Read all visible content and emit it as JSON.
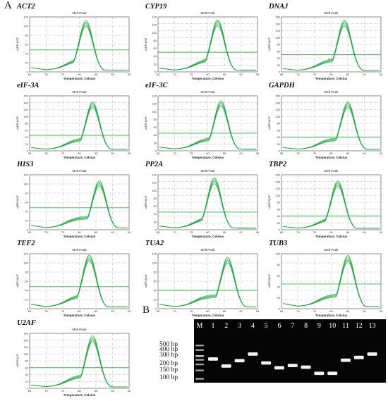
{
  "panel_a_label": "A",
  "panel_b_label": "B",
  "melt_plot": {
    "title": "Melt Peak",
    "xlabel": "Temperature, Celsius",
    "ylabel": "-d(RFU)/dT"
  },
  "genes": [
    "ACT2",
    "CYP19",
    "DNAJ",
    "eIF-3A",
    "eIF-3C",
    "GAPDH",
    "HIS3",
    "PP2A",
    "TBP2",
    "TEF2",
    "TUA2",
    "TUB3",
    "U2AF"
  ],
  "chart_data": [
    {
      "type": "line",
      "gene": "ACT2",
      "xlim": [
        65,
        95
      ],
      "ylim": [
        0,
        120
      ],
      "peak_temp": 82,
      "peak_value": 110,
      "threshold": 48
    },
    {
      "type": "line",
      "gene": "CYP19",
      "xlim": [
        65,
        95
      ],
      "ylim": [
        0,
        140
      ],
      "peak_temp": 83,
      "peak_value": 130,
      "threshold": 50
    },
    {
      "type": "line",
      "gene": "DNAJ",
      "xlim": [
        65,
        95
      ],
      "ylim": [
        0,
        160
      ],
      "peak_temp": 84,
      "peak_value": 148,
      "threshold": 50
    },
    {
      "type": "line",
      "gene": "eIF-3A",
      "xlim": [
        65,
        95
      ],
      "ylim": [
        0,
        160
      ],
      "peak_temp": 84,
      "peak_value": 140,
      "threshold": 45
    },
    {
      "type": "line",
      "gene": "eIF-3C",
      "xlim": [
        65,
        95
      ],
      "ylim": [
        0,
        140
      ],
      "peak_temp": 84,
      "peak_value": 125,
      "threshold": 45
    },
    {
      "type": "line",
      "gene": "GAPDH",
      "xlim": [
        65,
        95
      ],
      "ylim": [
        0,
        160
      ],
      "peak_temp": 85,
      "peak_value": 140,
      "threshold": 40
    },
    {
      "type": "line",
      "gene": "HIS3",
      "xlim": [
        65,
        95
      ],
      "ylim": [
        0,
        120
      ],
      "peak_temp": 86,
      "peak_value": 105,
      "threshold": 48
    },
    {
      "type": "line",
      "gene": "PP2A",
      "xlim": [
        65,
        95
      ],
      "ylim": [
        0,
        140
      ],
      "peak_temp": 82,
      "peak_value": 130,
      "threshold": 45
    },
    {
      "type": "line",
      "gene": "TBP2",
      "xlim": [
        65,
        95
      ],
      "ylim": [
        0,
        160
      ],
      "peak_temp": 82,
      "peak_value": 140,
      "threshold": 40
    },
    {
      "type": "line",
      "gene": "TEF2",
      "xlim": [
        65,
        95
      ],
      "ylim": [
        0,
        120
      ],
      "peak_temp": 83,
      "peak_value": 115,
      "threshold": 48
    },
    {
      "type": "line",
      "gene": "TUA2",
      "xlim": [
        65,
        95
      ],
      "ylim": [
        0,
        120
      ],
      "peak_temp": 86,
      "peak_value": 110,
      "threshold": 40
    },
    {
      "type": "line",
      "gene": "TUB3",
      "xlim": [
        65,
        95
      ],
      "ylim": [
        0,
        100
      ],
      "peak_temp": 85,
      "peak_value": 95,
      "threshold": 45
    },
    {
      "type": "line",
      "gene": "U2AF",
      "xlim": [
        65,
        95
      ],
      "ylim": [
        0,
        160
      ],
      "peak_temp": 84,
      "peak_value": 150,
      "threshold": 60
    }
  ],
  "gel": {
    "marker_label": "M",
    "lanes": [
      "1",
      "2",
      "3",
      "4",
      "5",
      "6",
      "7",
      "8",
      "9",
      "10",
      "11",
      "12",
      "13"
    ],
    "bp_labels": [
      "500 bp",
      "400 bp",
      "300 bp",
      "200 bp",
      "150 bp",
      "100 bp"
    ],
    "bp_values": [
      500,
      400,
      300,
      200,
      150,
      100
    ],
    "band_sizes_bp": [
      260,
      185,
      240,
      330,
      215,
      170,
      190,
      175,
      130,
      130,
      245,
      280,
      330
    ]
  },
  "colors": {
    "curve": "#1aa33a",
    "threshold": "#2db84a",
    "grid": "#9a9a9a",
    "gel_bg": "#050505"
  }
}
